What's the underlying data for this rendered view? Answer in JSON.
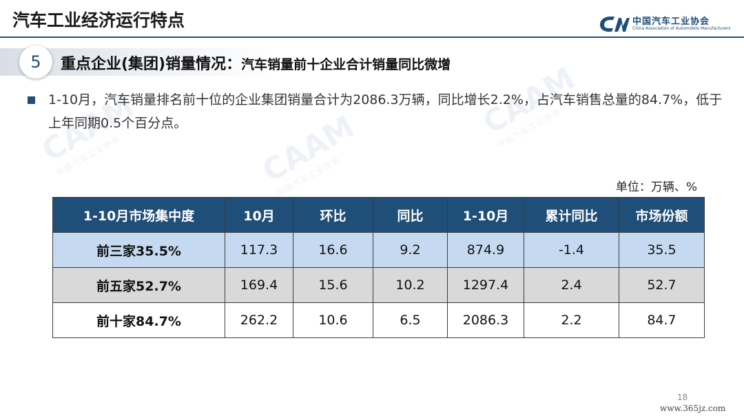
{
  "page_title": "汽车工业经济运行特点",
  "logo": {
    "name_cn": "中国汽车工业协会",
    "name_en": "China Association of Automobile Manufacturers"
  },
  "section": {
    "number": "5",
    "title": "重点企业(集团)销量情况：",
    "subtitle": "汽车销量前十企业合计销量同比微增"
  },
  "bullet": "1-10月，汽车销量排名前十位的企业集团销量合计为2086.3万辆，同比增长2.2%，占汽车销售总量的84.7%，低于上年同期0.5个百分点。",
  "unit": "单位：万辆、%",
  "table": {
    "headers": [
      "1-10月市场集中度",
      "10月",
      "环比",
      "同比",
      "1-10月",
      "累计同比",
      "市场份额"
    ],
    "rows": [
      [
        "前三家35.5%",
        "117.3",
        "16.6",
        "9.2",
        "874.9",
        "-1.4",
        "35.5"
      ],
      [
        "前五家52.7%",
        "169.4",
        "15.6",
        "10.2",
        "1297.4",
        "2.4",
        "52.7"
      ],
      [
        "前十家84.7%",
        "262.2",
        "10.6",
        "6.5",
        "2086.3",
        "2.2",
        "84.7"
      ]
    ]
  },
  "page_number": "18",
  "site": "www.365jz.com",
  "colors": {
    "header_bg": "#1f4e79",
    "row_top3": "#c5daf0",
    "row_top5": "#d9d9d9",
    "row_top10": "#ffffff"
  }
}
